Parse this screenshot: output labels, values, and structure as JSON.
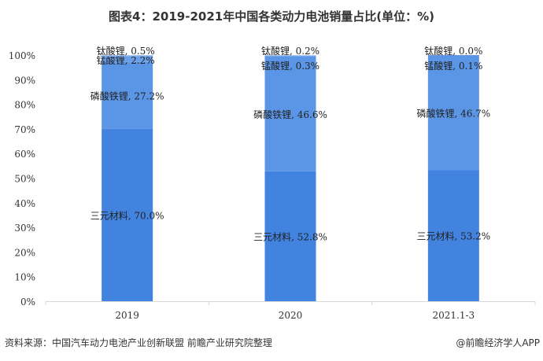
{
  "chart_data": {
    "type": "bar",
    "stacked": true,
    "title": "图表4：2019-2021年中国各类动力电池销量占比(单位：%)",
    "categories": [
      "2019",
      "2020",
      "2021.1-3"
    ],
    "series": [
      {
        "name": "三元材料",
        "values": [
          70.0,
          52.8,
          53.2
        ],
        "color": "#4283e0"
      },
      {
        "name": "磷酸铁锂",
        "values": [
          27.2,
          46.6,
          46.7
        ],
        "color": "#5b95e6"
      },
      {
        "name": "锰酸锂",
        "values": [
          2.2,
          0.3,
          0.1
        ],
        "color": "#6a9fe8"
      },
      {
        "name": "钛酸锂",
        "values": [
          0.5,
          0.2,
          0.0
        ],
        "color": "#7aa9ea"
      }
    ],
    "yticks": [
      "0%",
      "10%",
      "20%",
      "30%",
      "40%",
      "50%",
      "60%",
      "70%",
      "80%",
      "90%",
      "100%"
    ],
    "ylim": [
      0,
      100
    ],
    "xlabel": "",
    "ylabel": "",
    "grid": false,
    "legend": "none"
  },
  "footer": {
    "source": "资料来源：中国汽车动力电池产业创新联盟 前瞻产业研究院整理",
    "credit": "@前瞻经济学人APP"
  }
}
